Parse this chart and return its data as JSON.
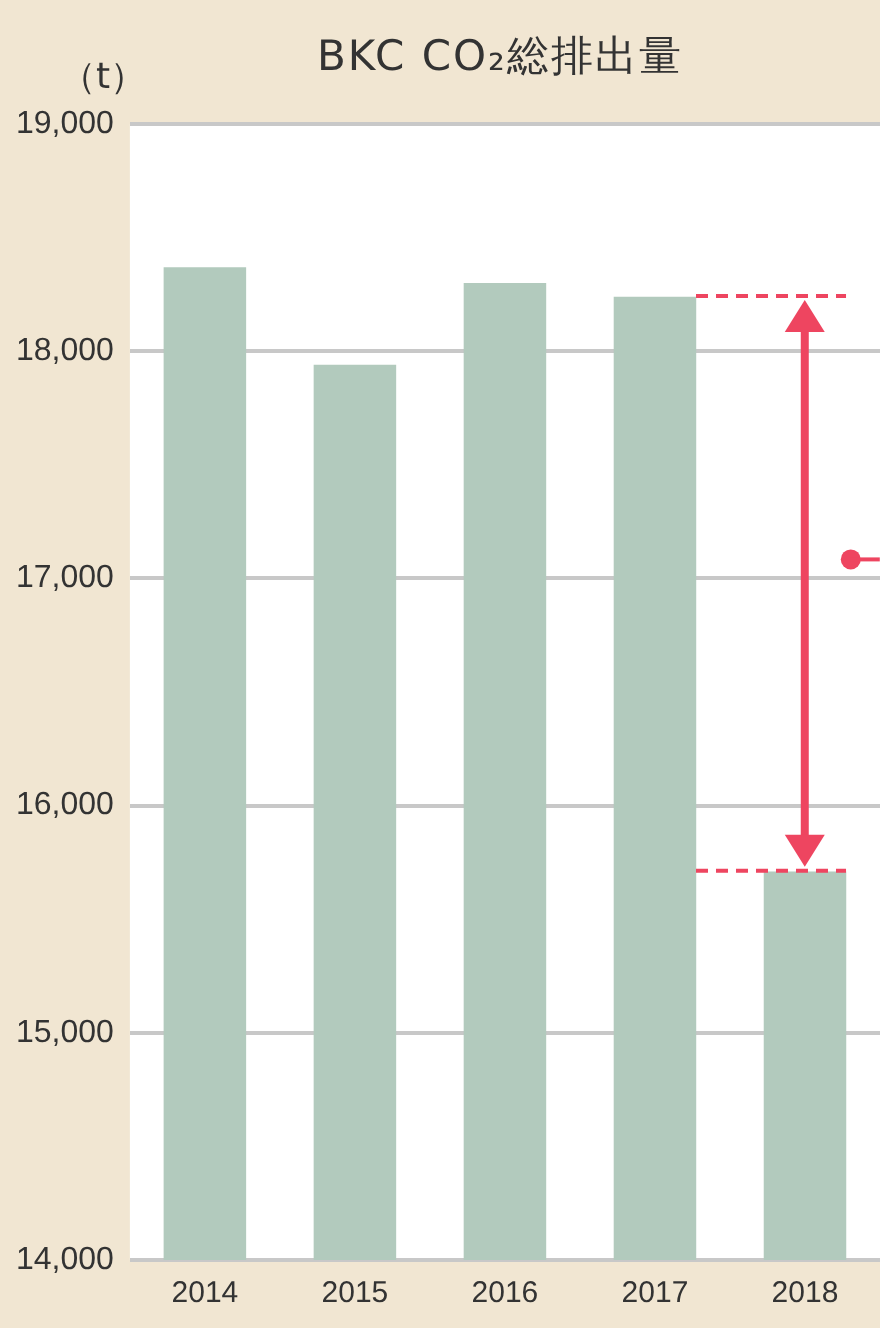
{
  "chart_data": {
    "type": "bar",
    "title": "BKC CO₂総排出量",
    "ylabel": "（t）",
    "categories": [
      "2014",
      "2015",
      "2016",
      "2017",
      "2018"
    ],
    "values": [
      18370,
      17940,
      18300,
      18240,
      15710
    ],
    "color": "#b2cabd",
    "ylim": [
      14000,
      19000
    ],
    "yticks": [
      {
        "value": 14000,
        "label": "14,000"
      },
      {
        "value": 15000,
        "label": "15,000"
      },
      {
        "value": 16000,
        "label": "16,000"
      },
      {
        "value": 17000,
        "label": "17,000"
      },
      {
        "value": 18000,
        "label": "18,000"
      },
      {
        "value": 19000,
        "label": "19,000"
      }
    ],
    "grid": "y"
  }
}
